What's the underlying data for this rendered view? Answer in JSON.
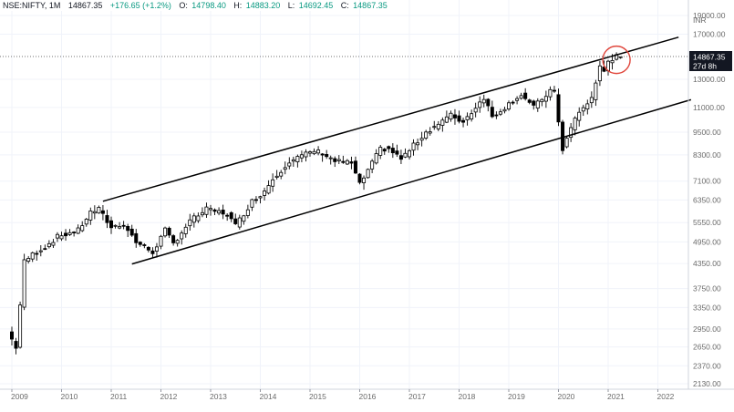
{
  "header": {
    "symbol": "NSE:NIFTY, 1M",
    "last": "14867.35",
    "change": "+176.65 (+1.2%)",
    "o_label": "O:",
    "o_value": "14798.40",
    "h_label": "H:",
    "h_value": "14883.20",
    "l_label": "L:",
    "l_value": "14692.45",
    "c_label": "C:",
    "c_value": "14867.35"
  },
  "price_tag": {
    "price": "14867.35",
    "countdown": "27d 8h"
  },
  "currency": "INR",
  "colors": {
    "up": "#ffffff",
    "down": "#000000",
    "wick": "#000000",
    "tag_bg": "#131722",
    "circle": "#e0463c",
    "grid": "#f0f3fa"
  },
  "chart_data": {
    "type": "candlestick",
    "scale": "log",
    "x_range": [
      "2008-12-15",
      "2022-09-01"
    ],
    "y_range": [
      1950,
      19500
    ],
    "x_ticks": [
      "2009",
      "2010",
      "2011",
      "2012",
      "2013",
      "2014",
      "2015",
      "2016",
      "2017",
      "2018",
      "2019",
      "2020",
      "2021",
      "2022"
    ],
    "y_ticks": [
      2130,
      2370,
      2650,
      2950,
      3350,
      3750,
      4350,
      4950,
      5550,
      6350,
      7100,
      8300,
      9500,
      11000,
      13000,
      17000,
      19000
    ],
    "y_tick_labels": [
      "2130.00",
      "2370.00",
      "2650.00",
      "2950.00",
      "3350.00",
      "3750.00",
      "4350.00",
      "4950.00",
      "5550.00",
      "6350.00",
      "7100.00",
      "8300.00",
      "9500.00",
      "11000.00",
      "13000.00",
      "17000.00",
      "19000.00"
    ],
    "last_price": 14867.35,
    "anchors": [
      [
        "2009-01",
        2900
      ],
      [
        "2009-03",
        2650
      ],
      [
        "2009-04",
        3400
      ],
      [
        "2009-05",
        4400
      ],
      [
        "2009-07",
        4600
      ],
      [
        "2009-10",
        4800
      ],
      [
        "2010-01",
        5100
      ],
      [
        "2010-06",
        5300
      ],
      [
        "2010-09",
        5900
      ],
      [
        "2010-11",
        6000
      ],
      [
        "2011-02",
        5400
      ],
      [
        "2011-05",
        5500
      ],
      [
        "2011-08",
        4950
      ],
      [
        "2011-12",
        4650
      ],
      [
        "2012-03",
        5300
      ],
      [
        "2012-05",
        4900
      ],
      [
        "2012-09",
        5600
      ],
      [
        "2013-01",
        6000
      ],
      [
        "2013-06",
        5850
      ],
      [
        "2013-08",
        5450
      ],
      [
        "2013-12",
        6300
      ],
      [
        "2014-03",
        6700
      ],
      [
        "2014-05",
        7200
      ],
      [
        "2014-09",
        8000
      ],
      [
        "2015-03",
        8500
      ],
      [
        "2015-05",
        8400
      ],
      [
        "2015-08",
        8000
      ],
      [
        "2015-12",
        7900
      ],
      [
        "2016-02",
        6950
      ],
      [
        "2016-07",
        8600
      ],
      [
        "2016-09",
        8600
      ],
      [
        "2016-12",
        8100
      ],
      [
        "2017-06",
        9500
      ],
      [
        "2017-12",
        10500
      ],
      [
        "2018-03",
        10100
      ],
      [
        "2018-08",
        11700
      ],
      [
        "2018-10",
        10400
      ],
      [
        "2019-05",
        11900
      ],
      [
        "2019-08",
        11000
      ],
      [
        "2019-12",
        12150
      ],
      [
        "2020-01",
        11950
      ],
      [
        "2020-03",
        8600
      ],
      [
        "2020-06",
        10300
      ],
      [
        "2020-10",
        11650
      ],
      [
        "2020-12",
        13980
      ],
      [
        "2021-01",
        13630
      ],
      [
        "2021-02",
        14530
      ],
      [
        "2021-04",
        14867
      ]
    ],
    "lines": [
      {
        "name": "channel-upper",
        "from": [
          "2010-11-01",
          6300
        ],
        "to": [
          "2022-06-01",
          16700
        ]
      },
      {
        "name": "channel-lower",
        "from": [
          "2011-06-01",
          4340
        ],
        "to": [
          "2022-09-01",
          11520
        ]
      }
    ],
    "annotation": {
      "type": "circle",
      "center": [
        "2021-03-01",
        14600
      ]
    }
  }
}
